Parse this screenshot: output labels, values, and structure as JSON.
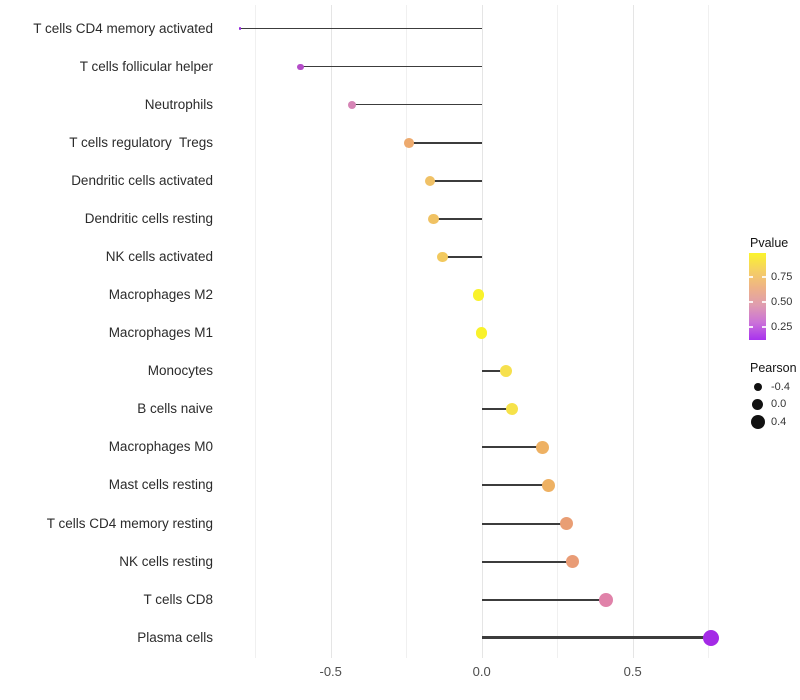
{
  "chart_data": {
    "type": "lollipop",
    "orientation": "horizontal",
    "title": "",
    "xlabel": "",
    "ylabel": "",
    "xlim": [
      -0.88,
      0.85
    ],
    "grid": "vertical, step 0.25, majors at -0.5/0.0/0.5",
    "x_axis": {
      "ticks": [
        {
          "label": "-0.5",
          "value": -0.5
        },
        {
          "label": "0.0",
          "value": 0.0
        },
        {
          "label": "0.5",
          "value": 0.5
        }
      ]
    },
    "points": [
      {
        "label": "T cells CD4 memory activated",
        "pearson": -0.8,
        "color": "#9229dd"
      },
      {
        "label": "T cells follicular helper",
        "pearson": -0.6,
        "color": "#b44cc8"
      },
      {
        "label": "Neutrophils",
        "pearson": -0.43,
        "color": "#d685b6"
      },
      {
        "label": "T cells regulatory  Tregs",
        "pearson": -0.24,
        "color": "#edaa6e"
      },
      {
        "label": "Dendritic cells activated",
        "pearson": -0.17,
        "color": "#f0c166"
      },
      {
        "label": "Dendritic cells resting",
        "pearson": -0.16,
        "color": "#f0c263"
      },
      {
        "label": "NK cells activated",
        "pearson": -0.13,
        "color": "#f2c95e"
      },
      {
        "label": "Macrophages M2",
        "pearson": -0.01,
        "color": "#f9f22b"
      },
      {
        "label": "Macrophages M1",
        "pearson": 0.0,
        "color": "#f9f22b"
      },
      {
        "label": "Monocytes",
        "pearson": 0.08,
        "color": "#f6e04d"
      },
      {
        "label": "B cells naive",
        "pearson": 0.1,
        "color": "#f6e24a"
      },
      {
        "label": "Macrophages M0",
        "pearson": 0.2,
        "color": "#eeb163"
      },
      {
        "label": "Mast cells resting",
        "pearson": 0.22,
        "color": "#eeb163"
      },
      {
        "label": "T cells CD4 memory resting",
        "pearson": 0.28,
        "color": "#e99e74"
      },
      {
        "label": "NK cells resting",
        "pearson": 0.3,
        "color": "#e99c76"
      },
      {
        "label": "T cells CD8",
        "pearson": 0.41,
        "color": "#e082a9"
      },
      {
        "label": "Plasma cells",
        "pearson": 0.76,
        "color": "#a42ae6"
      }
    ],
    "stem_color": "#3c3c3c"
  },
  "legend": {
    "pvalue": {
      "title": "Pvalue",
      "ticks": [
        "0.75",
        "0.50",
        "0.25"
      ],
      "gradient_top_to_bottom": [
        "#fbf42c",
        "#f5d063",
        "#eeb287",
        "#df9cb0",
        "#cb72d8",
        "#a832ee"
      ]
    },
    "pearson": {
      "title": "Pearson",
      "items": [
        {
          "label": "-0.4",
          "value": -0.4
        },
        {
          "label": "0.0",
          "value": 0.0
        },
        {
          "label": "0.4",
          "value": 0.4
        }
      ]
    }
  }
}
